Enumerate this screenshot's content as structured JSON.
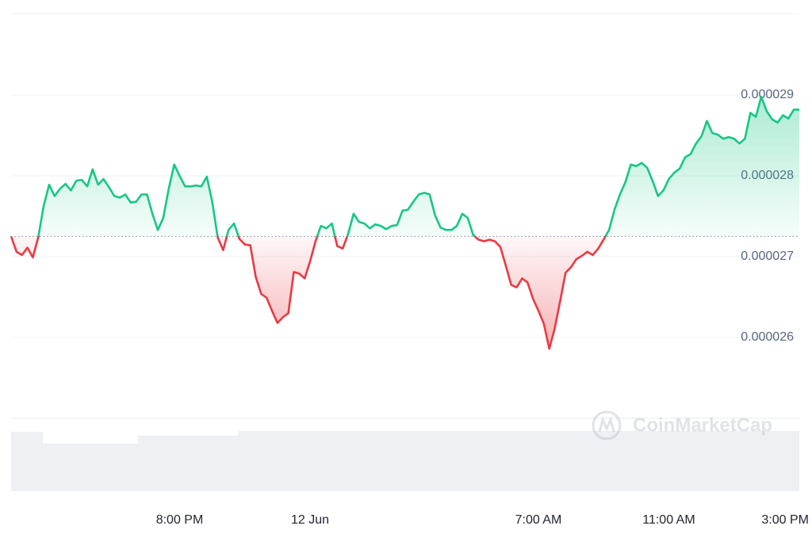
{
  "chart_data": {
    "type": "line",
    "watermark": "CoinMarketCap",
    "categories": [
      null,
      null,
      null,
      null,
      null,
      null,
      null,
      null,
      null,
      null,
      null,
      null,
      null,
      null,
      null,
      null,
      null,
      null,
      null,
      null,
      null,
      null,
      null,
      null,
      null,
      null,
      null,
      null,
      null,
      null,
      null,
      "8:00 PM",
      null,
      null,
      null,
      null,
      null,
      null,
      null,
      null,
      null,
      null,
      null,
      null,
      null,
      null,
      null,
      null,
      null,
      null,
      null,
      null,
      null,
      null,
      null,
      "12 Jun",
      null,
      null,
      null,
      null,
      null,
      null,
      null,
      null,
      null,
      null,
      null,
      null,
      null,
      null,
      null,
      null,
      null,
      null,
      null,
      null,
      null,
      null,
      null,
      null,
      null,
      null,
      null,
      null,
      null,
      null,
      null,
      null,
      null,
      null,
      null,
      null,
      null,
      null,
      null,
      null,
      null,
      "7:00 AM",
      null,
      null,
      null,
      null,
      null,
      null,
      null,
      null,
      null,
      null,
      null,
      null,
      null,
      null,
      null,
      null,
      null,
      null,
      null,
      null,
      null,
      null,
      null,
      "11:00 AM",
      null,
      null,
      null,
      null,
      null,
      null,
      null,
      null,
      null,
      null,
      null,
      null,
      null,
      null,
      null,
      null,
      null,
      null,
      null,
      null,
      null,
      null,
      null,
      "3:00 PM"
    ],
    "values": [
      2.725e-05,
      2.706e-05,
      2.702e-05,
      2.711e-05,
      2.699e-05,
      2.724e-05,
      2.763e-05,
      2.789e-05,
      2.775e-05,
      2.784e-05,
      2.79e-05,
      2.782e-05,
      2.794e-05,
      2.795e-05,
      2.787e-05,
      2.808e-05,
      2.789e-05,
      2.796e-05,
      2.786e-05,
      2.775e-05,
      2.773e-05,
      2.777e-05,
      2.767e-05,
      2.768e-05,
      2.777e-05,
      2.777e-05,
      2.753e-05,
      2.733e-05,
      2.748e-05,
      2.784e-05,
      2.814e-05,
      2.8e-05,
      2.787e-05,
      2.787e-05,
      2.788e-05,
      2.787e-05,
      2.799e-05,
      2.768e-05,
      2.724e-05,
      2.708e-05,
      2.733e-05,
      2.741e-05,
      2.722e-05,
      2.715e-05,
      2.714e-05,
      2.675e-05,
      2.654e-05,
      2.649e-05,
      2.633e-05,
      2.618e-05,
      2.625e-05,
      2.63e-05,
      2.681e-05,
      2.679e-05,
      2.673e-05,
      2.694e-05,
      2.719e-05,
      2.738e-05,
      2.735e-05,
      2.741e-05,
      2.713e-05,
      2.71e-05,
      2.728e-05,
      2.753e-05,
      2.743e-05,
      2.741e-05,
      2.735e-05,
      2.74e-05,
      2.738e-05,
      2.734e-05,
      2.738e-05,
      2.739e-05,
      2.757e-05,
      2.758e-05,
      2.768e-05,
      2.777e-05,
      2.779e-05,
      2.777e-05,
      2.751e-05,
      2.736e-05,
      2.733e-05,
      2.733e-05,
      2.738e-05,
      2.753e-05,
      2.748e-05,
      2.727e-05,
      2.721e-05,
      2.719e-05,
      2.721e-05,
      2.719e-05,
      2.712e-05,
      2.689e-05,
      2.665e-05,
      2.662e-05,
      2.673e-05,
      2.668e-05,
      2.648e-05,
      2.633e-05,
      2.617e-05,
      2.586e-05,
      2.611e-05,
      2.645e-05,
      2.68e-05,
      2.687e-05,
      2.697e-05,
      2.701e-05,
      2.706e-05,
      2.702e-05,
      2.71e-05,
      2.721e-05,
      2.733e-05,
      2.758e-05,
      2.777e-05,
      2.792e-05,
      2.814e-05,
      2.812e-05,
      2.816e-05,
      2.81e-05,
      2.794e-05,
      2.775e-05,
      2.782e-05,
      2.796e-05,
      2.804e-05,
      2.809e-05,
      2.823e-05,
      2.827e-05,
      2.84e-05,
      2.849e-05,
      2.868e-05,
      2.853e-05,
      2.851e-05,
      2.846e-05,
      2.848e-05,
      2.846e-05,
      2.84e-05,
      2.846e-05,
      2.878e-05,
      2.873e-05,
      2.898e-05,
      2.88e-05,
      2.87e-05,
      2.866e-05,
      2.875e-05,
      2.871e-05,
      2.882e-05,
      2.882e-05
    ],
    "baseline": 2.725e-05,
    "up_color": "#16c784",
    "down_color": "#ea3943",
    "ylim": [
      2.5e-05,
      3e-05
    ],
    "yticks": [
      2.6e-05,
      2.7e-05,
      2.8e-05,
      2.9e-05
    ],
    "grid": true
  }
}
